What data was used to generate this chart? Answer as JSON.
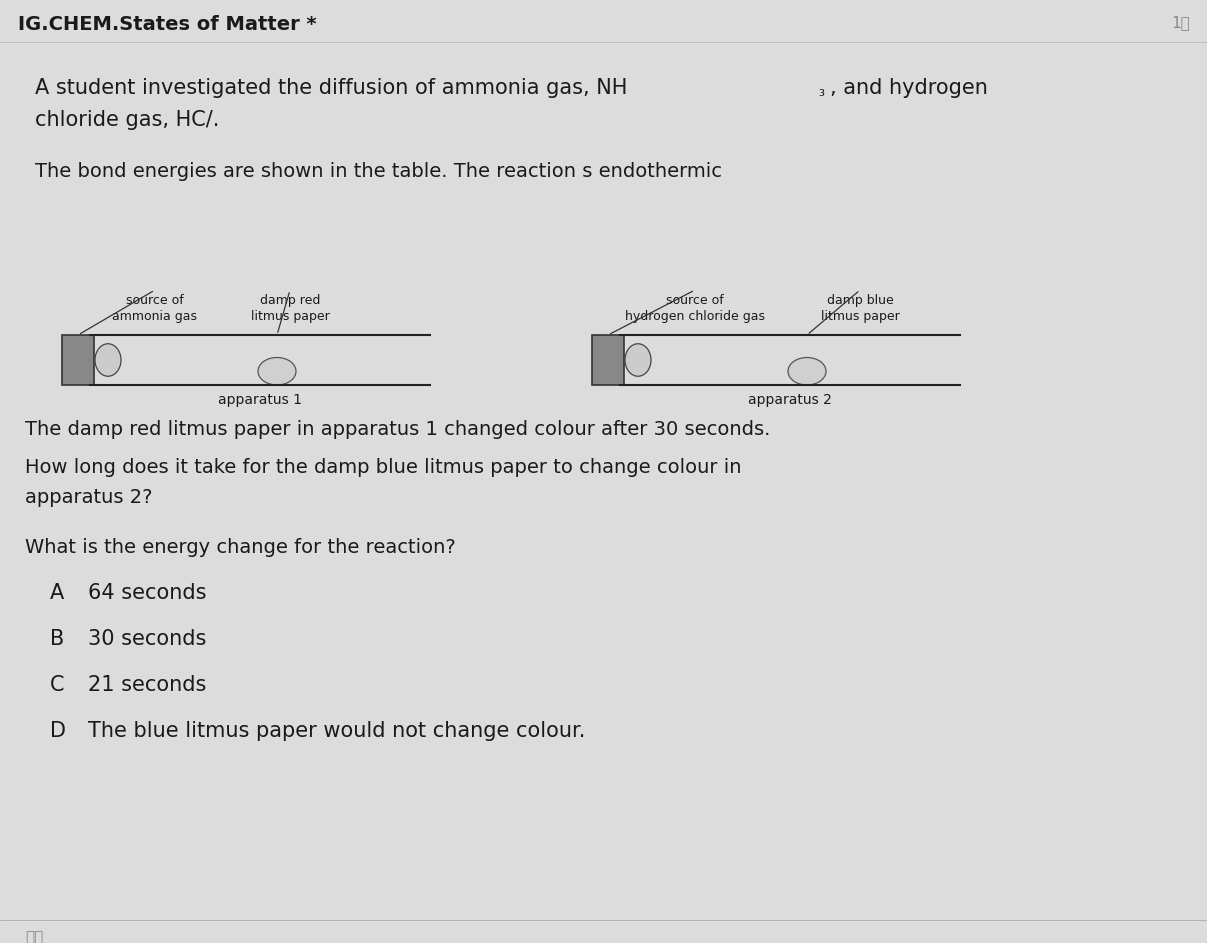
{
  "bg_color": "#dcdcdc",
  "title": "IG.CHEM.States of Matter *",
  "score": "1分",
  "paragraph1_part1": "A student investigated the diffusion of ammonia gas, NH",
  "nh3_sub": "₃",
  "paragraph1_part2": ", and hydrogen",
  "paragraph1_line2": "chloride gas, HC/.",
  "paragraph2": "The bond energies are shown in the table. The reaction s endothermic",
  "app1_source_label": "source of\nammonia gas",
  "app1_litmus_label": "damp red\nlitmus paper",
  "app2_source_label": "source of\nhydrogen chloride gas",
  "app2_litmus_label": "damp blue\nlitmus paper",
  "app1_name": "apparatus 1",
  "app2_name": "apparatus 2",
  "sentence1": "The damp red litmus paper in apparatus 1 changed colour after 30 seconds.",
  "sentence2_line1": "How long does it take for the damp blue litmus paper to change colour in",
  "sentence2_line2": "apparatus 2?",
  "sentence3": "What is the energy change for the reaction?",
  "options": [
    {
      "letter": "A",
      "text": "64 seconds"
    },
    {
      "letter": "B",
      "text": "30 seconds"
    },
    {
      "letter": "C",
      "text": "21 seconds"
    },
    {
      "letter": "D",
      "text": "The blue litmus paper would not change colour."
    }
  ],
  "footer": "选择",
  "text_color": "#1a1a1a",
  "light_text": "#888888",
  "dark_gray": "#555555"
}
